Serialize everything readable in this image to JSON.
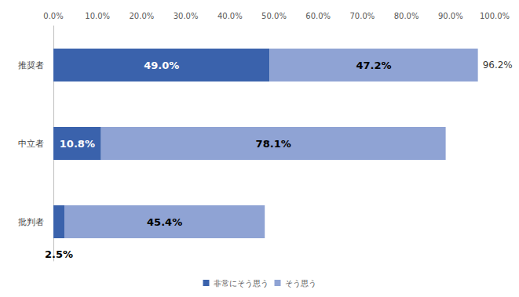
{
  "chart_data": {
    "type": "bar",
    "orientation": "horizontal",
    "stacked": true,
    "data_labels": true,
    "grid": false,
    "legend": "bottom",
    "categories": [
      "推奨者",
      "中立者",
      "批判者"
    ],
    "series": [
      {
        "name": "非常にそう思う",
        "color": "#3a62ac",
        "values": [
          49.0,
          10.8,
          2.5
        ],
        "value_labels": [
          "49.0%",
          "10.8%",
          "2.5%"
        ]
      },
      {
        "name": "そう思う",
        "color": "#8fa3d4",
        "values": [
          47.2,
          78.1,
          45.4
        ],
        "value_labels": [
          "47.2%",
          "78.1%",
          "45.4%"
        ]
      }
    ],
    "xlim": [
      0,
      100
    ],
    "xticks": [
      {
        "value": 0,
        "label": "0.0%"
      },
      {
        "value": 10,
        "label": "10.0%"
      },
      {
        "value": 20,
        "label": "20.0%"
      },
      {
        "value": 30,
        "label": "30.0%"
      },
      {
        "value": 40,
        "label": "40.0%"
      },
      {
        "value": 50,
        "label": "50.0%"
      },
      {
        "value": 60,
        "label": "60.0%"
      },
      {
        "value": 70,
        "label": "70.0%"
      },
      {
        "value": 80,
        "label": "80.0%"
      },
      {
        "value": 90,
        "label": "90.0%"
      },
      {
        "value": 100,
        "label": "100.0%"
      }
    ],
    "annotations": [
      {
        "category": "推奨者",
        "value": 96.2,
        "label": "96.2%"
      }
    ]
  }
}
